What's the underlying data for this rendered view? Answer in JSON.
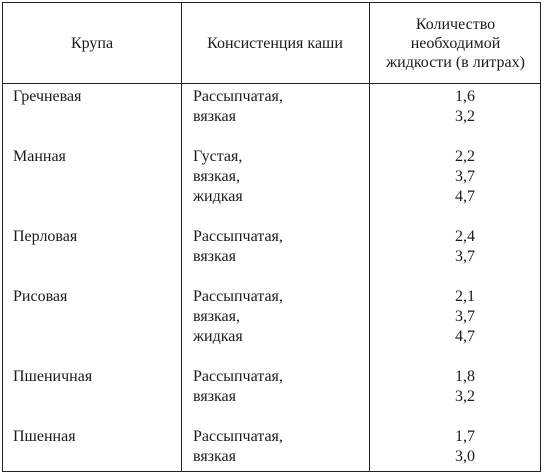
{
  "header": {
    "grain": "Крупа",
    "consistency": "Консистенция каши",
    "liquid_lines": [
      "Количество",
      "необходимой",
      "жидкости (в литрах)"
    ]
  },
  "rows": [
    {
      "grain": "Гречневая",
      "consistency": [
        "Рассыпчатая,",
        "вязкая"
      ],
      "liquid": [
        "1,6",
        "3,2"
      ]
    },
    {
      "grain": "Манная",
      "consistency": [
        "Густая,",
        "вязкая,",
        "жидкая"
      ],
      "liquid": [
        "2,2",
        "3,7",
        "4,7"
      ]
    },
    {
      "grain": "Перловая",
      "consistency": [
        "Рассыпчатая,",
        "вязкая"
      ],
      "liquid": [
        "2,4",
        "3,7"
      ]
    },
    {
      "grain": "Рисовая",
      "consistency": [
        "Рассыпчатая,",
        "вязкая,",
        "жидкая"
      ],
      "liquid": [
        "2,1",
        "3,7",
        "4,7"
      ]
    },
    {
      "grain": "Пшеничная",
      "consistency": [
        "Рассыпчатая,",
        "вязкая"
      ],
      "liquid": [
        "1,8",
        "3,2"
      ]
    },
    {
      "grain": "Пшенная",
      "consistency": [
        "Рассыпчатая,",
        "вязкая"
      ],
      "liquid": [
        "1,7",
        "3,0"
      ]
    }
  ]
}
